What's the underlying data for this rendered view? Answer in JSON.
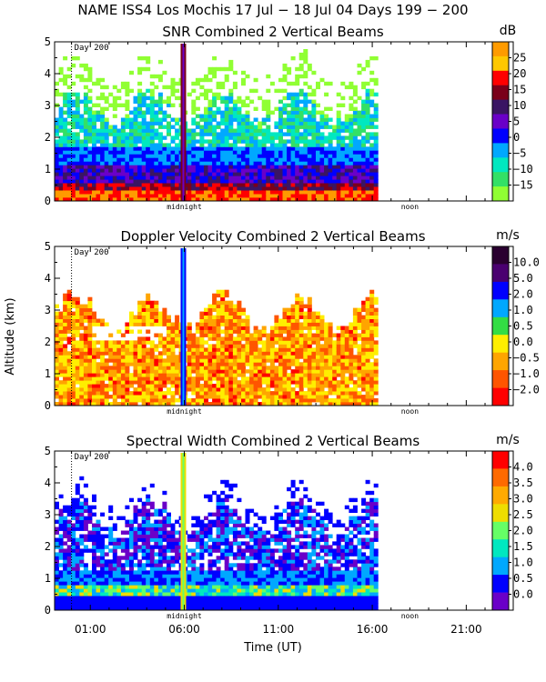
{
  "main_title": "NAME ISS4 Los Mochis  17 Jul − 18 Jul 04 Days 199 − 200",
  "x_axis": {
    "label": "Time (UT)",
    "ticks": [
      "01:00",
      "06:00",
      "11:00",
      "16:00",
      "21:00"
    ],
    "markers": [
      "midnight",
      "noon"
    ],
    "day_label": "Day 200"
  },
  "y_axis": {
    "label": "Altitude (km)",
    "ticks": [
      "0",
      "1",
      "2",
      "3",
      "4",
      "5"
    ]
  },
  "chart_data": [
    {
      "type": "heatmap",
      "title": "SNR Combined 2 Vertical Beams",
      "unit": "dB",
      "colorbar_ticks": [
        "25",
        "20",
        "15",
        "10",
        "5",
        "0",
        "−5",
        "−10",
        "−15"
      ],
      "colors": [
        "#ff9b00",
        "#ffc800",
        "#ff0000",
        "#7a001a",
        "#3a1563",
        "#6a00c8",
        "#0000ff",
        "#00a8ff",
        "#00e8c0",
        "#33e066",
        "#90ff33"
      ],
      "time_range_hours": [
        -0.9,
        23.5
      ],
      "data_end_hour": 16.3,
      "ylim": [
        0,
        5
      ]
    },
    {
      "type": "heatmap",
      "title": "Doppler Velocity Combined 2 Vertical Beams",
      "unit": "m/s",
      "colorbar_ticks": [
        "10.0",
        "5.0",
        "2.0",
        "1.0",
        "0.5",
        "0.0",
        "−0.5",
        "−1.0",
        "−2.0"
      ],
      "colors": [
        "#2a0030",
        "#4a0070",
        "#0000ff",
        "#00a8ff",
        "#33dd44",
        "#ffee00",
        "#ffa500",
        "#ff5500",
        "#ff0000"
      ],
      "time_range_hours": [
        -0.9,
        23.5
      ],
      "data_end_hour": 16.3,
      "ylim": [
        0,
        5
      ]
    },
    {
      "type": "heatmap",
      "title": "Spectral Width Combined 2 Vertical Beams",
      "unit": "m/s",
      "colorbar_ticks": [
        "4.0",
        "3.5",
        "3.0",
        "2.5",
        "2.0",
        "1.5",
        "1.0",
        "0.5",
        "0.0"
      ],
      "colors": [
        "#ff0000",
        "#ff6a00",
        "#ffaa00",
        "#eedd00",
        "#66ff66",
        "#00e8c0",
        "#00a8ff",
        "#0000ff",
        "#6a00c8"
      ],
      "time_range_hours": [
        -0.9,
        23.5
      ],
      "data_end_hour": 16.3,
      "ylim": [
        0,
        5
      ]
    }
  ]
}
